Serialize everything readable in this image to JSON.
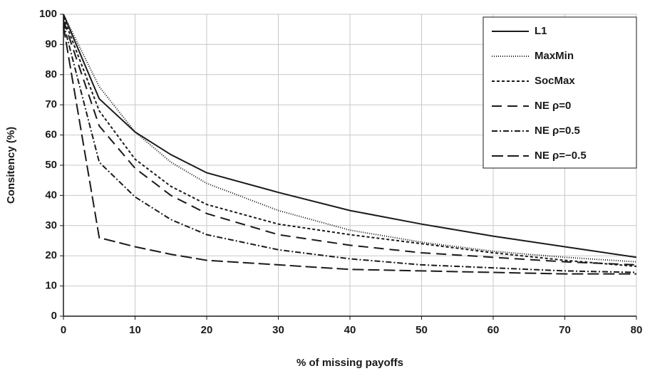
{
  "chart_data": {
    "type": "line",
    "x_label": "% of missing payoffs",
    "y_label": "Consitency (%)",
    "x": [
      0,
      5,
      10,
      15,
      20,
      30,
      40,
      50,
      60,
      70,
      80
    ],
    "series": [
      {
        "name": "L1",
        "color": "#1a1a1a",
        "dash": "none",
        "values": [
          100,
          72,
          61,
          53.5,
          47.5,
          41,
          35,
          30.5,
          26.5,
          23,
          19.5
        ]
      },
      {
        "name": "MaxMin",
        "color": "#1a1a1a",
        "dash": "1 2",
        "values": [
          100,
          76,
          61,
          51,
          44,
          35,
          28.5,
          24.5,
          21.5,
          19.5,
          18
        ]
      },
      {
        "name": "SocMax",
        "color": "#1a1a1a",
        "dash": "4 3",
        "values": [
          99,
          68,
          52,
          43,
          37,
          30.5,
          27,
          24,
          21,
          18.5,
          16.5
        ]
      },
      {
        "name": "NE ρ=0",
        "color": "#1a1a1a",
        "dash": "14 8",
        "values": [
          98,
          63,
          49,
          40,
          34,
          27,
          23.5,
          21,
          19.5,
          18,
          17
        ]
      },
      {
        "name": "NE ρ=0.5",
        "color": "#1a1a1a",
        "dash": "8 3 2 3",
        "values": [
          97,
          51,
          39.5,
          32,
          27,
          22,
          19,
          17,
          16,
          15,
          14.5
        ]
      },
      {
        "name": "NE ρ=−0.5",
        "color": "#1a1a1a",
        "dash": "16 6",
        "values": [
          96,
          26,
          23,
          20.5,
          18.5,
          17,
          15.5,
          15,
          14.5,
          14,
          14
        ]
      }
    ],
    "xlim": [
      0,
      80
    ],
    "xticks": [
      0,
      10,
      20,
      30,
      40,
      50,
      60,
      70,
      80
    ],
    "ylim": [
      0,
      100
    ],
    "yticks": [
      0,
      10,
      20,
      30,
      40,
      50,
      60,
      70,
      80,
      90,
      100
    ],
    "grid": true,
    "legend": "upper right"
  }
}
